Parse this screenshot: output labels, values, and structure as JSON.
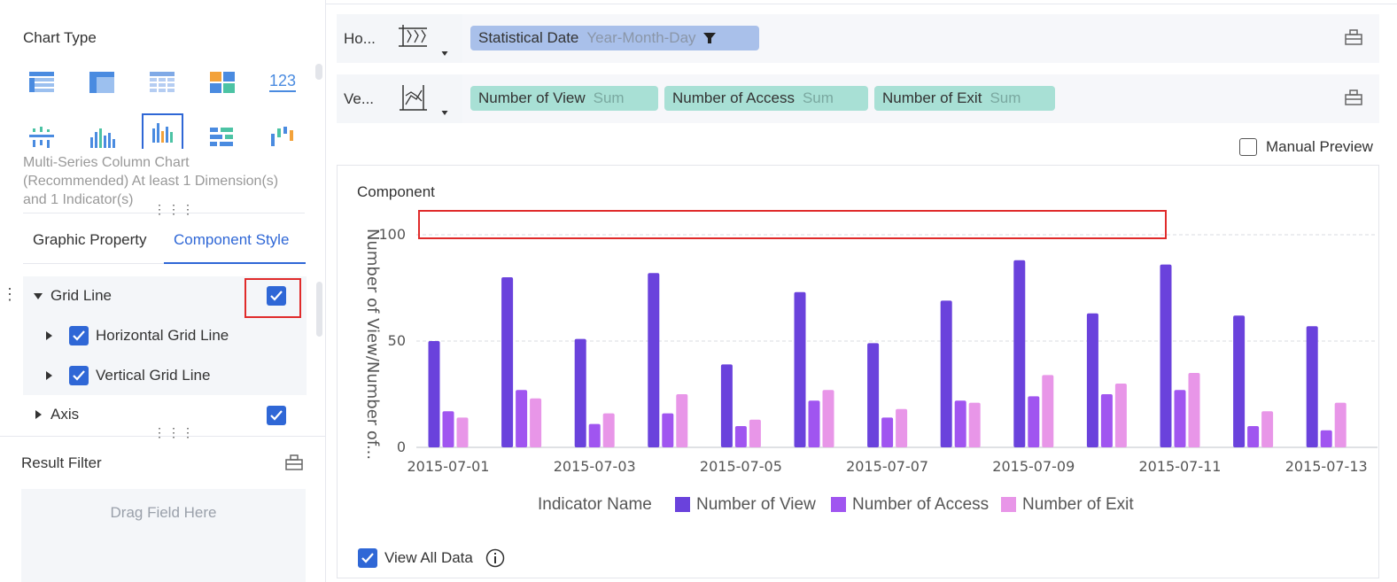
{
  "left": {
    "chart_type_title": "Chart Type",
    "chart_description": "Multi-Series Column Chart (Recommended) At least 1 Dimension(s) and 1 Indicator(s)",
    "tabs": [
      "Graphic Property",
      "Component Style"
    ],
    "tree": {
      "grid_line": "Grid Line",
      "horizontal_grid_line": "Horizontal Grid Line",
      "vertical_grid_line": "Vertical Grid Line",
      "axis": "Axis"
    },
    "result_filter_title": "Result Filter",
    "drag_placeholder": "Drag Field Here"
  },
  "fields": {
    "horizontal_label": "Ho...",
    "vertical_label": "Ve...",
    "horizontal_pills": [
      {
        "name": "Statistical Date",
        "sub": "Year-Month-Day"
      }
    ],
    "vertical_pills": [
      {
        "name": "Number of View",
        "sub": "Sum"
      },
      {
        "name": "Number of Access",
        "sub": "Sum"
      },
      {
        "name": "Number of Exit",
        "sub": "Sum"
      }
    ]
  },
  "manual_preview_label": "Manual Preview",
  "component_title": "Component",
  "view_all_label": "View All Data",
  "colors": {
    "accent": "#2f67d6",
    "view": "#6a42dc",
    "access": "#a055f0",
    "exit": "#e896e8",
    "highlight": "#e02b2b"
  },
  "chart_data": {
    "type": "bar",
    "ylabel": "Number of View/Number of...",
    "ylim": [
      0,
      100
    ],
    "y_ticks": [
      "0",
      "50",
      "100"
    ],
    "grid": true,
    "categories": [
      "2015-07-01",
      "2015-07-02",
      "2015-07-03",
      "2015-07-04",
      "2015-07-05",
      "2015-07-06",
      "2015-07-07",
      "2015-07-08",
      "2015-07-09",
      "2015-07-10",
      "2015-07-11",
      "2015-07-12",
      "2015-07-13"
    ],
    "x_tick_labels": [
      "2015-07-01",
      "",
      "2015-07-03",
      "",
      "2015-07-05",
      "",
      "2015-07-07",
      "",
      "2015-07-09",
      "",
      "2015-07-11",
      "",
      "2015-07-13"
    ],
    "legend_title": "Indicator Name",
    "legend_position": "bottom",
    "series": [
      {
        "name": "Number of View",
        "values": [
          50,
          80,
          51,
          82,
          39,
          73,
          49,
          69,
          88,
          63,
          86,
          62,
          57
        ]
      },
      {
        "name": "Number of Access",
        "values": [
          17,
          27,
          11,
          16,
          10,
          22,
          14,
          22,
          24,
          25,
          27,
          10,
          8
        ]
      },
      {
        "name": "Number of Exit",
        "values": [
          14,
          23,
          16,
          25,
          13,
          27,
          18,
          21,
          34,
          30,
          35,
          17,
          21
        ]
      }
    ]
  }
}
